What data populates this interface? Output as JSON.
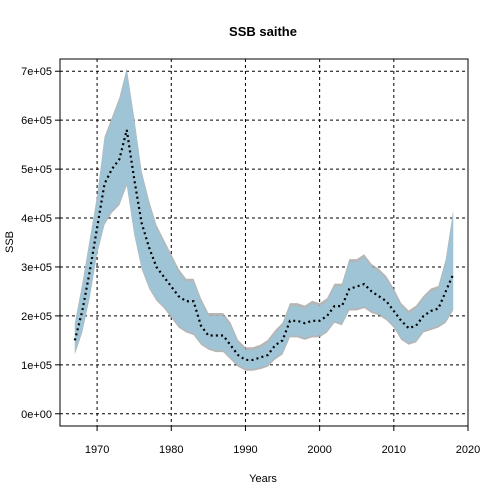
{
  "chart_data": {
    "type": "area",
    "title": "SSB saithe",
    "xlabel": "Years",
    "ylabel": "SSB",
    "xlim": [
      1965,
      2020
    ],
    "ylim": [
      -25000,
      725000
    ],
    "x_ticks": [
      1970,
      1980,
      1990,
      2000,
      2010,
      2020
    ],
    "x_tick_labels": [
      "1970",
      "1980",
      "1990",
      "2000",
      "2010",
      "2020"
    ],
    "y_ticks": [
      0,
      100000,
      200000,
      300000,
      400000,
      500000,
      600000,
      700000
    ],
    "y_tick_labels": [
      "0e+00",
      "1e+05",
      "2e+05",
      "3e+05",
      "4e+05",
      "5e+05",
      "6e+05",
      "7e+05"
    ],
    "grid": true,
    "colors": {
      "band_fill": "#9fc4d6",
      "band_outer": "#a9a9a9",
      "median_line": "#000000",
      "grid": "#000000"
    },
    "years": [
      1967,
      1968,
      1969,
      1970,
      1971,
      1972,
      1973,
      1974,
      1975,
      1976,
      1977,
      1978,
      1979,
      1980,
      1981,
      1982,
      1983,
      1984,
      1985,
      1986,
      1987,
      1988,
      1989,
      1990,
      1991,
      1992,
      1993,
      1994,
      1995,
      1996,
      1997,
      1998,
      1999,
      2000,
      2001,
      2002,
      2003,
      2004,
      2005,
      2006,
      2007,
      2008,
      2009,
      2010,
      2011,
      2012,
      2013,
      2014,
      2015,
      2016,
      2017,
      2018
    ],
    "series": [
      {
        "values": [
          150000,
          210000,
          290000,
          380000,
          470000,
          500000,
          520000,
          580000,
          480000,
          390000,
          340000,
          300000,
          280000,
          260000,
          240000,
          230000,
          230000,
          180000,
          160000,
          160000,
          160000,
          140000,
          120000,
          110000,
          110000,
          115000,
          120000,
          140000,
          150000,
          190000,
          190000,
          185000,
          190000,
          190000,
          200000,
          220000,
          220000,
          255000,
          260000,
          265000,
          250000,
          240000,
          230000,
          210000,
          190000,
          175000,
          180000,
          200000,
          210000,
          215000,
          250000,
          285000
        ]
      },
      {
        "values": [
          125000,
          170000,
          240000,
          330000,
          390000,
          415000,
          430000,
          470000,
          370000,
          300000,
          260000,
          235000,
          220000,
          200000,
          180000,
          170000,
          165000,
          145000,
          135000,
          130000,
          130000,
          115000,
          100000,
          92000,
          92000,
          95000,
          100000,
          115000,
          125000,
          160000,
          160000,
          155000,
          160000,
          160000,
          170000,
          190000,
          185000,
          215000,
          215000,
          220000,
          210000,
          205000,
          195000,
          180000,
          155000,
          145000,
          150000,
          170000,
          175000,
          180000,
          190000,
          215000
        ]
      },
      {
        "values": [
          180000,
          260000,
          350000,
          440000,
          560000,
          600000,
          640000,
          700000,
          600000,
          490000,
          430000,
          380000,
          350000,
          320000,
          290000,
          270000,
          270000,
          230000,
          200000,
          200000,
          200000,
          180000,
          145000,
          130000,
          130000,
          135000,
          145000,
          165000,
          180000,
          220000,
          220000,
          215000,
          225000,
          220000,
          230000,
          260000,
          260000,
          310000,
          310000,
          320000,
          300000,
          290000,
          275000,
          250000,
          220000,
          205000,
          215000,
          235000,
          250000,
          255000,
          310000,
          410000
        ]
      }
    ]
  }
}
